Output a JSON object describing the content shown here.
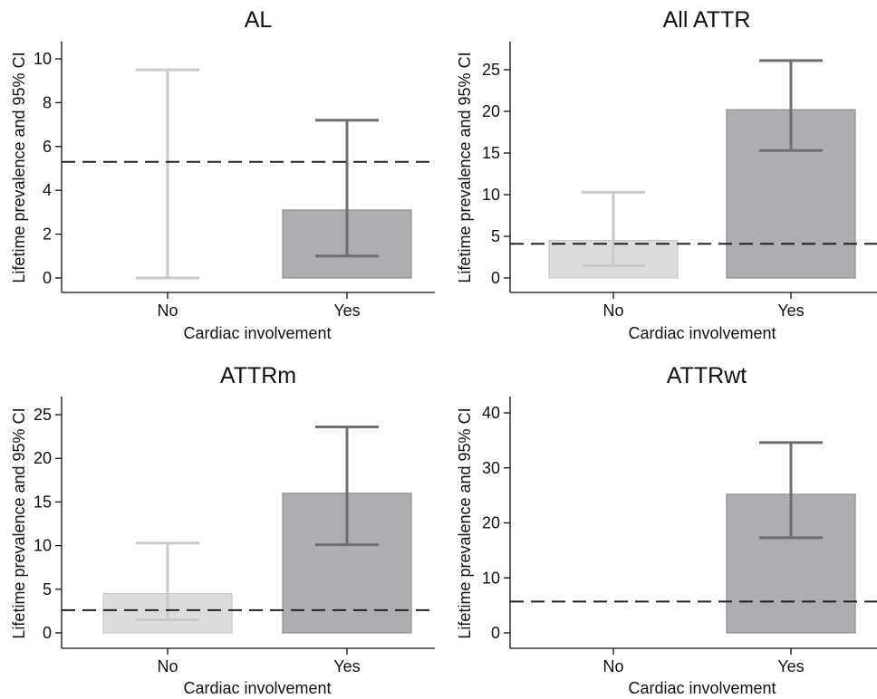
{
  "chart_data": [
    {
      "type": "bar",
      "title": "AL",
      "xlabel": "Cardiac involvement",
      "ylabel": "Lifetime prevalence and 95% CI",
      "categories": [
        "No",
        "Yes"
      ],
      "values": [
        0,
        3.1
      ],
      "ci_low": [
        0,
        1.0
      ],
      "ci_high": [
        9.5,
        7.2
      ],
      "reference_line": 5.3,
      "ylim": [
        0,
        10
      ],
      "yticks": [
        0,
        2,
        4,
        6,
        8,
        10
      ],
      "bar_colors": [
        "#dcdcdf",
        "#aeaeb2"
      ],
      "ci_colors": [
        "#c9c9c9",
        "#6f6f6f"
      ]
    },
    {
      "type": "bar",
      "title": "All ATTR",
      "xlabel": "Cardiac involvement",
      "ylabel": "Lifetime prevalence and 95% CI",
      "categories": [
        "No",
        "Yes"
      ],
      "values": [
        4.5,
        20.2
      ],
      "ci_low": [
        1.5,
        15.3
      ],
      "ci_high": [
        10.3,
        26.1
      ],
      "reference_line": 4.1,
      "ylim": [
        0,
        25
      ],
      "yticks": [
        0,
        5,
        10,
        15,
        20,
        25
      ],
      "bar_colors": [
        "#dcdcdf",
        "#aeaeb2"
      ],
      "ci_colors": [
        "#c9c9c9",
        "#6f6f6f"
      ]
    },
    {
      "type": "bar",
      "title": "ATTRm",
      "xlabel": "Cardiac involvement",
      "ylabel": "Lifetime prevalence and 95% CI",
      "categories": [
        "No",
        "Yes"
      ],
      "values": [
        4.5,
        16.0
      ],
      "ci_low": [
        1.5,
        10.1
      ],
      "ci_high": [
        10.3,
        23.6
      ],
      "reference_line": 2.6,
      "ylim": [
        0,
        25
      ],
      "yticks": [
        0,
        5,
        10,
        15,
        20,
        25
      ],
      "bar_colors": [
        "#dcdcdf",
        "#aeaeb2"
      ],
      "ci_colors": [
        "#c9c9c9",
        "#6f6f6f"
      ]
    },
    {
      "type": "bar",
      "title": "ATTRwt",
      "xlabel": "Cardiac involvement",
      "ylabel": "Lifetime prevalence and 95% CI",
      "categories": [
        "No",
        "Yes"
      ],
      "values": [
        null,
        25.2
      ],
      "ci_low": [
        null,
        17.3
      ],
      "ci_high": [
        null,
        34.6
      ],
      "reference_line": 5.7,
      "ylim": [
        0,
        40
      ],
      "yticks": [
        0,
        10,
        20,
        30,
        40
      ],
      "bar_colors": [
        "#dcdcdf",
        "#aeaeb2"
      ],
      "ci_colors": [
        "#c9c9c9",
        "#6f6f6f"
      ]
    }
  ]
}
